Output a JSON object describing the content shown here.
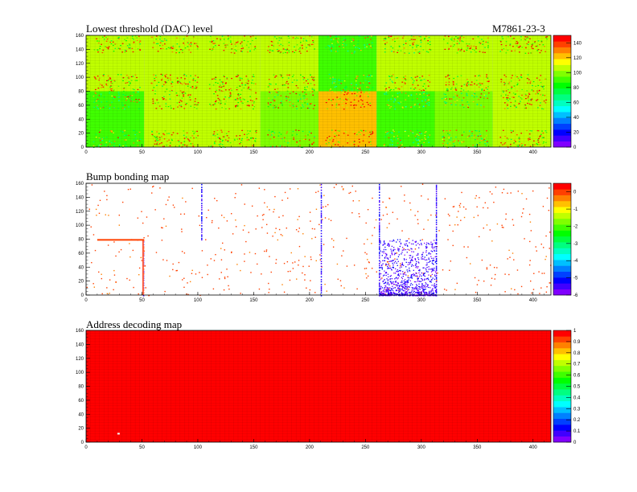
{
  "figure": {
    "id_label": "M7861-23-3"
  },
  "chart_data": [
    {
      "type": "heatmap",
      "title": "Lowest threshold (DAC) level",
      "xlabel": "",
      "ylabel": "",
      "xlim": [
        0,
        416
      ],
      "ylim": [
        0,
        160
      ],
      "x_ticks": [
        0,
        50,
        100,
        150,
        200,
        250,
        300,
        350,
        400
      ],
      "y_ticks": [
        0,
        20,
        40,
        60,
        80,
        100,
        120,
        140,
        160
      ],
      "zlim": [
        0,
        150
      ],
      "z_ticks": [
        0,
        20,
        40,
        60,
        80,
        100,
        120,
        140
      ],
      "palette": [
        "#8000ff",
        "#4000ff",
        "#0000ff",
        "#0040ff",
        "#0080ff",
        "#00c0ff",
        "#00ffff",
        "#00ffc0",
        "#00ff80",
        "#00ff40",
        "#00ff00",
        "#40ff00",
        "#80ff00",
        "#c0ff00",
        "#ffff00",
        "#ffc000",
        "#ff8000",
        "#ff4000",
        "#ff0000"
      ],
      "grid": true,
      "chips_top": [
        {
          "x0": 0,
          "x1": 52,
          "y0": 80,
          "y1": 160,
          "z": 110
        },
        {
          "x0": 52,
          "x1": 104,
          "y0": 80,
          "y1": 160,
          "z": 106
        },
        {
          "x0": 104,
          "x1": 156,
          "y0": 80,
          "y1": 160,
          "z": 110
        },
        {
          "x0": 156,
          "x1": 208,
          "y0": 80,
          "y1": 160,
          "z": 110
        },
        {
          "x0": 208,
          "x1": 260,
          "y0": 80,
          "y1": 160,
          "z": 92
        },
        {
          "x0": 260,
          "x1": 312,
          "y0": 80,
          "y1": 160,
          "z": 103
        },
        {
          "x0": 312,
          "x1": 364,
          "y0": 80,
          "y1": 160,
          "z": 108
        },
        {
          "x0": 364,
          "x1": 416,
          "y0": 80,
          "y1": 160,
          "z": 110
        }
      ],
      "chips_bottom": [
        {
          "x0": 0,
          "x1": 52,
          "y0": 0,
          "y1": 80,
          "z": 94
        },
        {
          "x0": 52,
          "x1": 104,
          "y0": 0,
          "y1": 80,
          "z": 110
        },
        {
          "x0": 104,
          "x1": 156,
          "y0": 0,
          "y1": 80,
          "z": 110
        },
        {
          "x0": 156,
          "x1": 208,
          "y0": 0,
          "y1": 80,
          "z": 100
        },
        {
          "x0": 208,
          "x1": 260,
          "y0": 0,
          "y1": 80,
          "z": 125
        },
        {
          "x0": 260,
          "x1": 312,
          "y0": 0,
          "y1": 80,
          "z": 88
        },
        {
          "x0": 312,
          "x1": 364,
          "y0": 0,
          "y1": 80,
          "z": 96
        },
        {
          "x0": 364,
          "x1": 416,
          "y0": 0,
          "y1": 80,
          "z": 108
        }
      ]
    },
    {
      "type": "heatmap",
      "title": "Bump bonding map",
      "xlabel": "",
      "ylabel": "",
      "xlim": [
        0,
        416
      ],
      "ylim": [
        0,
        160
      ],
      "x_ticks": [
        0,
        50,
        100,
        150,
        200,
        250,
        300,
        350,
        400
      ],
      "y_ticks": [
        0,
        20,
        40,
        60,
        80,
        100,
        120,
        140,
        160
      ],
      "zlim": [
        -6,
        0.5
      ],
      "z_ticks": [
        0,
        -1,
        -2,
        -3,
        -4,
        -5,
        -6
      ],
      "palette": [
        "#8000ff",
        "#4000ff",
        "#0000ff",
        "#0040ff",
        "#0080ff",
        "#00c0ff",
        "#00ffff",
        "#00ffc0",
        "#00ff80",
        "#00ff40",
        "#00ff00",
        "#40ff00",
        "#80ff00",
        "#c0ff00",
        "#ffff00",
        "#ffc000",
        "#ff8000",
        "#ff4000",
        "#ff0000"
      ],
      "grid": false,
      "features": [
        {
          "kind": "column",
          "x": 51,
          "y0": 0,
          "y1": 80,
          "z": 0
        },
        {
          "kind": "row",
          "y": 79,
          "x0": 10,
          "x1": 52,
          "z": 0
        },
        {
          "kind": "column",
          "x": 103,
          "y0": 80,
          "y1": 160,
          "z": -5
        },
        {
          "kind": "column",
          "x": 210,
          "y0": 0,
          "y1": 160,
          "z": -5
        },
        {
          "kind": "column",
          "x": 262,
          "y0": 0,
          "y1": 160,
          "z": -5
        },
        {
          "kind": "column",
          "x": 313,
          "y0": 0,
          "y1": 160,
          "z": -5
        },
        {
          "kind": "cluster",
          "x0": 262,
          "x1": 313,
          "y0": 0,
          "y1": 80,
          "z": -5
        }
      ]
    },
    {
      "type": "heatmap",
      "title": "Address decoding map",
      "xlabel": "",
      "ylabel": "",
      "xlim": [
        0,
        416
      ],
      "ylim": [
        0,
        160
      ],
      "x_ticks": [
        0,
        50,
        100,
        150,
        200,
        250,
        300,
        350,
        400
      ],
      "y_ticks": [
        0,
        20,
        40,
        60,
        80,
        100,
        120,
        140,
        160
      ],
      "zlim": [
        0,
        1
      ],
      "z_ticks": [
        0,
        0.1,
        0.2,
        0.3,
        0.4,
        0.5,
        0.6,
        0.7,
        0.8,
        0.9,
        1
      ],
      "palette": [
        "#8000ff",
        "#4000ff",
        "#0000ff",
        "#0040ff",
        "#0080ff",
        "#00c0ff",
        "#00ffff",
        "#00ffc0",
        "#00ff80",
        "#00ff40",
        "#00ff00",
        "#40ff00",
        "#80ff00",
        "#c0ff00",
        "#ffff00",
        "#ffc000",
        "#ff8000",
        "#ff4000",
        "#ff0000"
      ],
      "grid": true,
      "fill_value": 1,
      "dead_pixels": [
        {
          "x": 28,
          "y": 11,
          "z": 0
        }
      ]
    }
  ]
}
